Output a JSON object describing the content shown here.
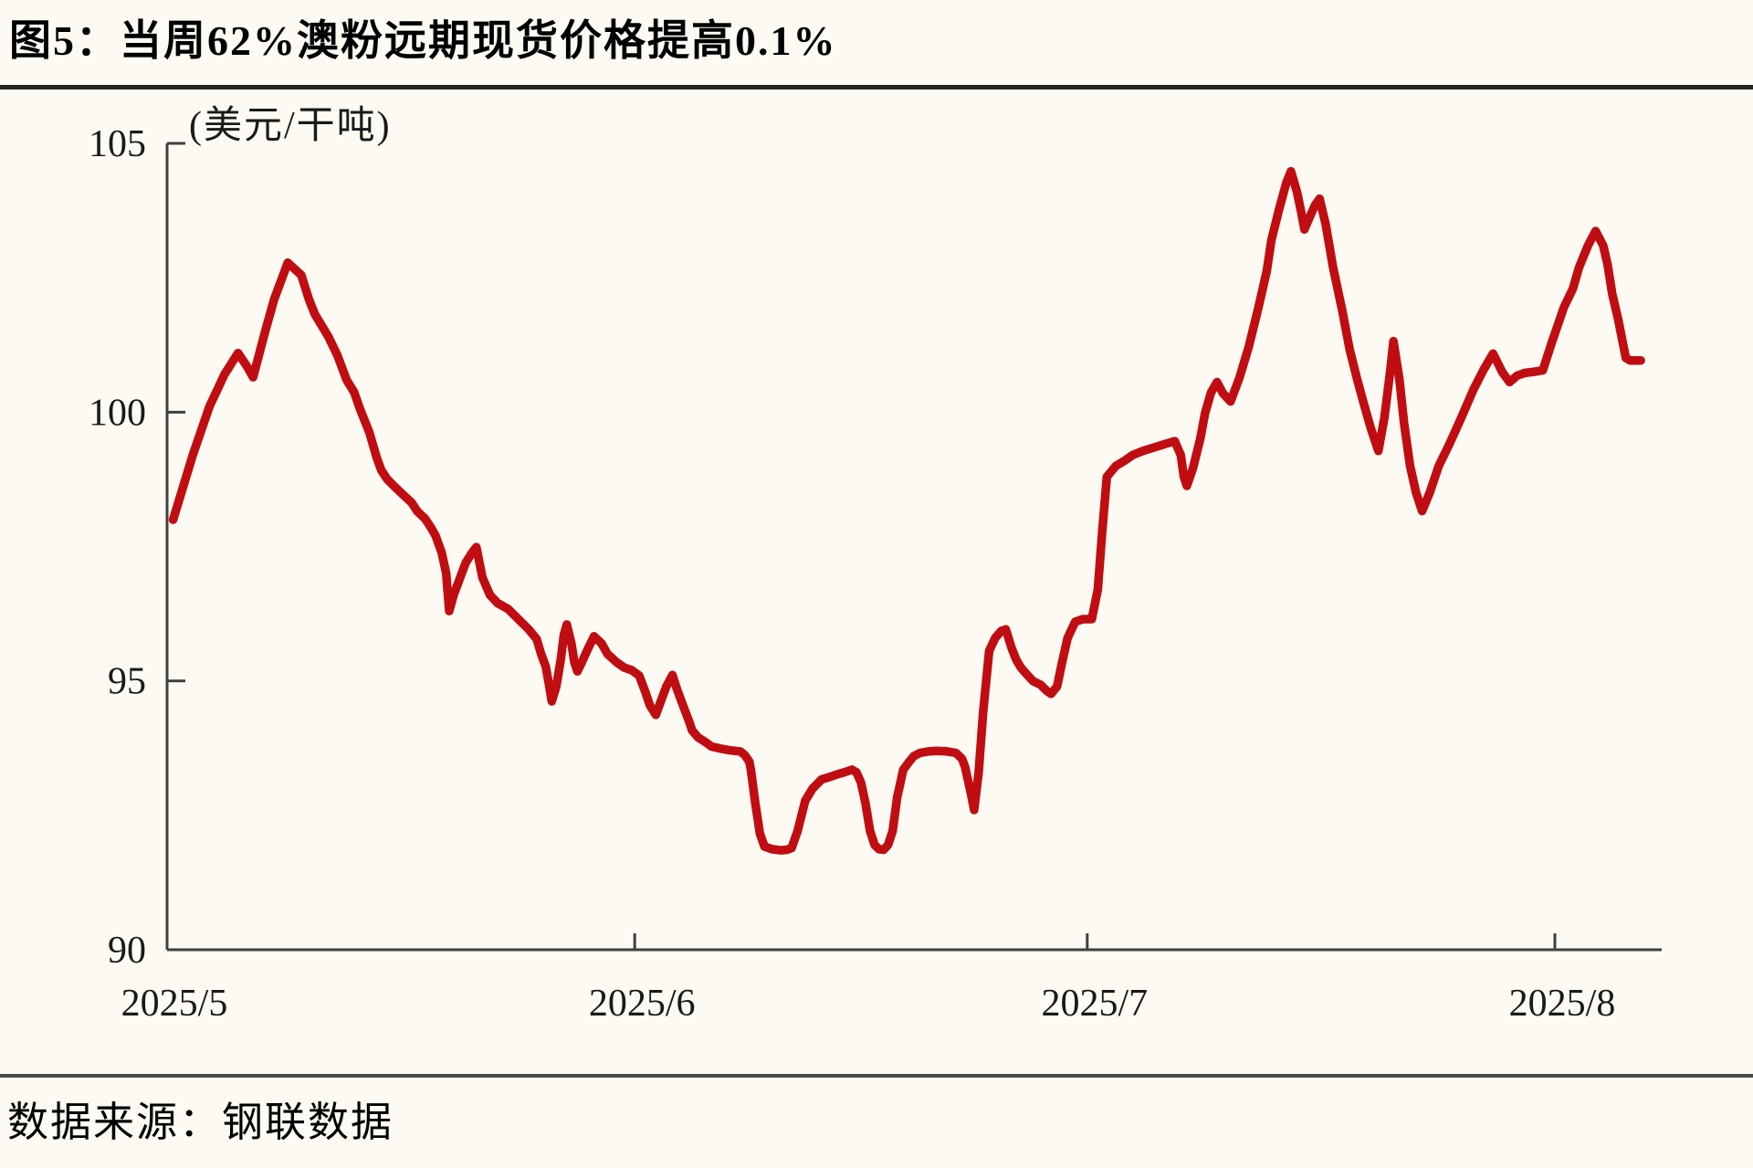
{
  "figure": {
    "title": "图5：当周62%澳粉远期现货价格提高0.1%",
    "source": "数据来源：钢联数据"
  },
  "chart_data": {
    "type": "line",
    "title": "当周62%澳粉远期现货价格提高0.1%",
    "ylabel": "(美元/干吨)",
    "xlabel": "",
    "legend": "none",
    "grid": "off",
    "line_color": "#C00D12",
    "axis_color": "#404040",
    "background_color": "#FCFAF2",
    "ylim": [
      90,
      105
    ],
    "y_ticks": [
      {
        "value": 90,
        "label": "90"
      },
      {
        "value": 95,
        "label": "95"
      },
      {
        "value": 100,
        "label": "100"
      },
      {
        "value": 105,
        "label": "105"
      }
    ],
    "x_unit": "days since 2025-05-01",
    "x_ticks": [
      {
        "label": "2025/5",
        "day": 0
      },
      {
        "label": "2025/6",
        "day": 31
      },
      {
        "label": "2025/7",
        "day": 61
      },
      {
        "label": "2025/8",
        "day": 92
      }
    ],
    "series": [
      {
        "name": "62%澳粉远期现货价格",
        "points": [
          [
            0.4,
            98.0
          ],
          [
            1.7,
            99.2
          ],
          [
            2.8,
            100.1
          ],
          [
            3.8,
            100.7
          ],
          [
            4.7,
            101.1
          ],
          [
            5.3,
            100.85
          ],
          [
            5.7,
            100.65
          ],
          [
            6.5,
            101.5
          ],
          [
            7.1,
            102.1
          ],
          [
            8.0,
            102.78
          ],
          [
            8.9,
            102.55
          ],
          [
            9.4,
            102.1
          ],
          [
            9.8,
            101.82
          ],
          [
            10.7,
            101.4
          ],
          [
            11.3,
            101.05
          ],
          [
            11.9,
            100.6
          ],
          [
            12.4,
            100.37
          ],
          [
            12.8,
            100.05
          ],
          [
            13.4,
            99.63
          ],
          [
            13.9,
            99.15
          ],
          [
            14.2,
            98.92
          ],
          [
            14.6,
            98.75
          ],
          [
            15.1,
            98.61
          ],
          [
            15.7,
            98.45
          ],
          [
            16.2,
            98.32
          ],
          [
            16.6,
            98.15
          ],
          [
            17.1,
            98.02
          ],
          [
            17.5,
            97.85
          ],
          [
            17.8,
            97.7
          ],
          [
            18.2,
            97.39
          ],
          [
            18.5,
            97.0
          ],
          [
            18.7,
            96.3
          ],
          [
            19.0,
            96.6
          ],
          [
            19.4,
            96.9
          ],
          [
            19.8,
            97.2
          ],
          [
            20.2,
            97.38
          ],
          [
            20.5,
            97.49
          ],
          [
            20.9,
            96.93
          ],
          [
            21.4,
            96.6
          ],
          [
            21.9,
            96.45
          ],
          [
            22.6,
            96.34
          ],
          [
            23.1,
            96.2
          ],
          [
            23.5,
            96.09
          ],
          [
            24.0,
            95.95
          ],
          [
            24.5,
            95.78
          ],
          [
            24.8,
            95.5
          ],
          [
            25.1,
            95.27
          ],
          [
            25.3,
            94.96
          ],
          [
            25.5,
            94.62
          ],
          [
            25.8,
            94.9
          ],
          [
            26.1,
            95.4
          ],
          [
            26.3,
            95.85
          ],
          [
            26.5,
            96.05
          ],
          [
            26.8,
            95.7
          ],
          [
            27.0,
            95.35
          ],
          [
            27.2,
            95.18
          ],
          [
            27.5,
            95.35
          ],
          [
            27.9,
            95.6
          ],
          [
            28.3,
            95.83
          ],
          [
            28.8,
            95.7
          ],
          [
            29.2,
            95.5
          ],
          [
            29.8,
            95.35
          ],
          [
            30.3,
            95.25
          ],
          [
            30.8,
            95.2
          ],
          [
            31.3,
            95.1
          ],
          [
            31.7,
            94.8
          ],
          [
            32.0,
            94.55
          ],
          [
            32.4,
            94.37
          ],
          [
            32.7,
            94.6
          ],
          [
            33.1,
            94.9
          ],
          [
            33.5,
            95.11
          ],
          [
            33.8,
            94.85
          ],
          [
            34.3,
            94.47
          ],
          [
            34.6,
            94.25
          ],
          [
            34.8,
            94.08
          ],
          [
            35.2,
            93.95
          ],
          [
            35.7,
            93.86
          ],
          [
            36.1,
            93.78
          ],
          [
            36.7,
            93.74
          ],
          [
            37.3,
            93.71
          ],
          [
            38.0,
            93.69
          ],
          [
            38.3,
            93.62
          ],
          [
            38.6,
            93.5
          ],
          [
            38.7,
            93.35
          ],
          [
            39.0,
            92.72
          ],
          [
            39.3,
            92.16
          ],
          [
            39.6,
            91.92
          ],
          [
            40.1,
            91.87
          ],
          [
            40.7,
            91.85
          ],
          [
            41.1,
            91.86
          ],
          [
            41.4,
            91.89
          ],
          [
            41.8,
            92.21
          ],
          [
            42.3,
            92.77
          ],
          [
            42.8,
            93.0
          ],
          [
            43.4,
            93.17
          ],
          [
            44.0,
            93.22
          ],
          [
            44.4,
            93.26
          ],
          [
            44.9,
            93.3
          ],
          [
            45.4,
            93.35
          ],
          [
            45.7,
            93.3
          ],
          [
            46.0,
            93.11
          ],
          [
            46.3,
            92.72
          ],
          [
            46.6,
            92.21
          ],
          [
            46.9,
            91.95
          ],
          [
            47.2,
            91.87
          ],
          [
            47.5,
            91.86
          ],
          [
            47.8,
            91.95
          ],
          [
            48.1,
            92.21
          ],
          [
            48.4,
            92.84
          ],
          [
            48.8,
            93.35
          ],
          [
            49.2,
            93.5
          ],
          [
            49.5,
            93.6
          ],
          [
            49.9,
            93.66
          ],
          [
            50.5,
            93.69
          ],
          [
            51.0,
            93.7
          ],
          [
            51.7,
            93.69
          ],
          [
            52.3,
            93.66
          ],
          [
            52.7,
            93.55
          ],
          [
            52.9,
            93.4
          ],
          [
            53.3,
            92.89
          ],
          [
            53.5,
            92.6
          ],
          [
            53.8,
            93.3
          ],
          [
            54.1,
            94.42
          ],
          [
            54.5,
            95.56
          ],
          [
            54.9,
            95.8
          ],
          [
            55.3,
            95.93
          ],
          [
            55.6,
            95.96
          ],
          [
            56.0,
            95.6
          ],
          [
            56.3,
            95.39
          ],
          [
            56.6,
            95.25
          ],
          [
            56.9,
            95.15
          ],
          [
            57.4,
            95.0
          ],
          [
            57.9,
            94.93
          ],
          [
            58.3,
            94.82
          ],
          [
            58.6,
            94.76
          ],
          [
            59.0,
            94.9
          ],
          [
            59.3,
            95.3
          ],
          [
            59.7,
            95.8
          ],
          [
            60.2,
            96.1
          ],
          [
            60.7,
            96.15
          ],
          [
            61.3,
            96.15
          ],
          [
            61.7,
            96.7
          ],
          [
            62.0,
            97.8
          ],
          [
            62.3,
            98.8
          ],
          [
            62.9,
            99.0
          ],
          [
            63.5,
            99.1
          ],
          [
            64.0,
            99.2
          ],
          [
            64.7,
            99.28
          ],
          [
            65.5,
            99.35
          ],
          [
            66.3,
            99.42
          ],
          [
            66.8,
            99.46
          ],
          [
            67.2,
            99.2
          ],
          [
            67.4,
            98.8
          ],
          [
            67.6,
            98.63
          ],
          [
            68.0,
            98.95
          ],
          [
            68.5,
            99.51
          ],
          [
            68.8,
            99.97
          ],
          [
            69.2,
            100.36
          ],
          [
            69.6,
            100.56
          ],
          [
            70.0,
            100.35
          ],
          [
            70.5,
            100.2
          ],
          [
            71.1,
            100.65
          ],
          [
            71.7,
            101.21
          ],
          [
            72.3,
            101.89
          ],
          [
            72.9,
            102.62
          ],
          [
            73.2,
            103.19
          ],
          [
            73.7,
            103.76
          ],
          [
            74.2,
            104.27
          ],
          [
            74.5,
            104.48
          ],
          [
            74.9,
            104.1
          ],
          [
            75.2,
            103.7
          ],
          [
            75.4,
            103.4
          ],
          [
            75.7,
            103.6
          ],
          [
            76.1,
            103.85
          ],
          [
            76.4,
            103.97
          ],
          [
            76.8,
            103.5
          ],
          [
            77.3,
            102.69
          ],
          [
            77.9,
            101.9
          ],
          [
            78.4,
            101.16
          ],
          [
            78.9,
            100.6
          ],
          [
            79.3,
            100.19
          ],
          [
            79.8,
            99.7
          ],
          [
            80.3,
            99.28
          ],
          [
            80.7,
            99.9
          ],
          [
            81.1,
            100.8
          ],
          [
            81.3,
            101.32
          ],
          [
            81.7,
            100.6
          ],
          [
            82.0,
            99.8
          ],
          [
            82.4,
            99.0
          ],
          [
            82.8,
            98.5
          ],
          [
            83.2,
            98.16
          ],
          [
            83.7,
            98.5
          ],
          [
            84.3,
            99.0
          ],
          [
            85.0,
            99.4
          ],
          [
            85.8,
            99.9
          ],
          [
            86.6,
            100.42
          ],
          [
            87.3,
            100.8
          ],
          [
            87.9,
            101.09
          ],
          [
            88.5,
            100.75
          ],
          [
            89.0,
            100.56
          ],
          [
            89.5,
            100.68
          ],
          [
            90.0,
            100.73
          ],
          [
            90.6,
            100.75
          ],
          [
            91.2,
            100.78
          ],
          [
            91.8,
            101.3
          ],
          [
            92.6,
            101.95
          ],
          [
            93.2,
            102.3
          ],
          [
            93.6,
            102.69
          ],
          [
            94.2,
            103.1
          ],
          [
            94.7,
            103.37
          ],
          [
            95.2,
            103.1
          ],
          [
            95.5,
            102.74
          ],
          [
            95.8,
            102.2
          ],
          [
            96.2,
            101.72
          ],
          [
            96.5,
            101.3
          ],
          [
            96.7,
            101.01
          ],
          [
            97.0,
            100.96
          ],
          [
            97.7,
            100.96
          ]
        ]
      }
    ]
  }
}
